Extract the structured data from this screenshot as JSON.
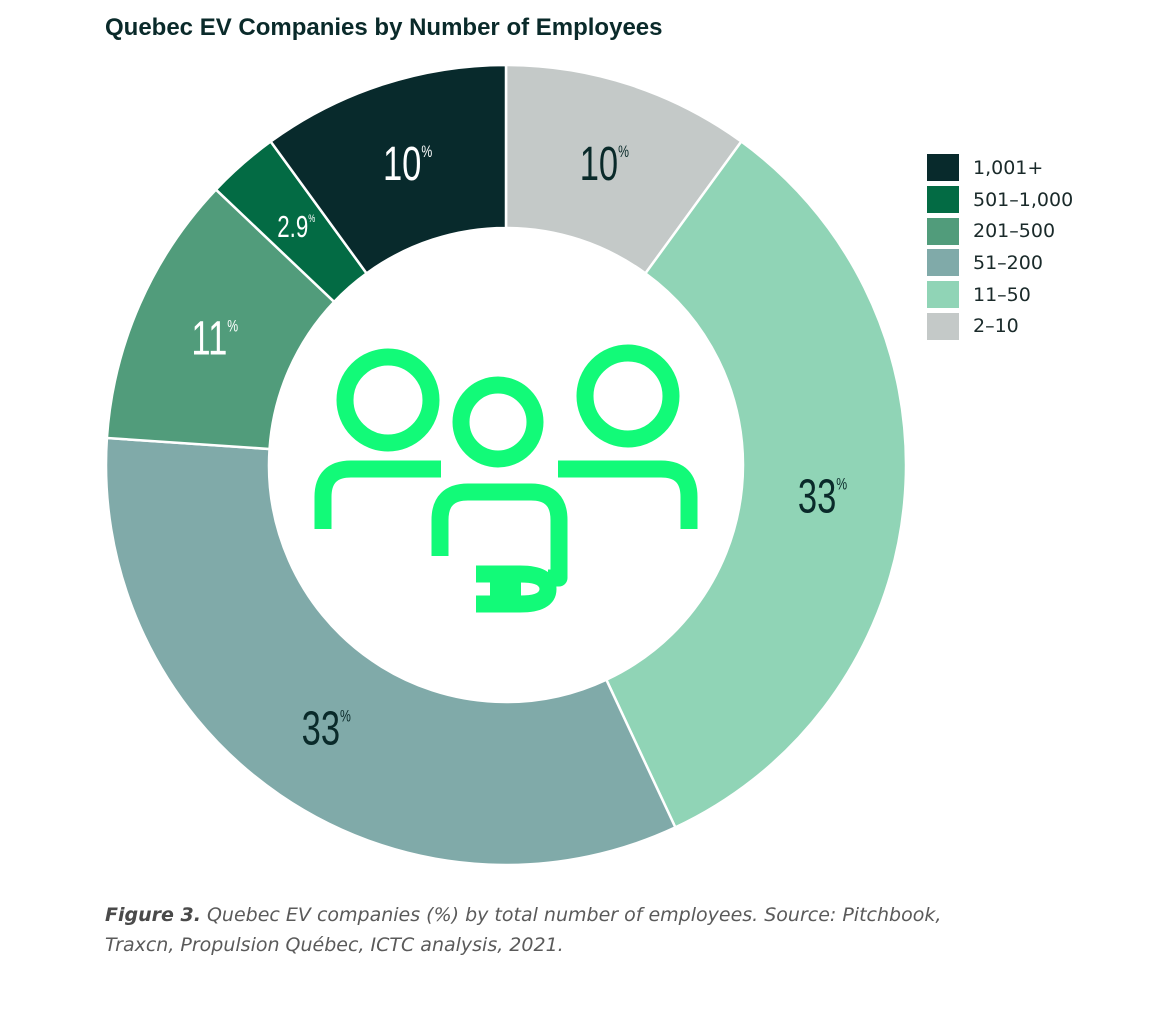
{
  "chart_data": {
    "type": "pie",
    "title": "Quebec EV Companies by Number of Employees",
    "categories": [
      "2–10",
      "11–50",
      "51–200",
      "201–500",
      "501–1,000",
      "1,001+"
    ],
    "values": [
      10,
      33,
      33,
      11,
      2.9,
      10
    ],
    "labels": [
      "10",
      "33",
      "33",
      "11",
      "2.9",
      "10"
    ],
    "unit_symbol": "%",
    "colors": [
      "#c4c9c8",
      "#90d4b6",
      "#80aaa9",
      "#519c7b",
      "#036b44",
      "#082a2c"
    ],
    "legend_order": [
      "1,001+",
      "501–1,000",
      "201–500",
      "51–200",
      "11–50",
      "2–10"
    ],
    "legend_colors": [
      "#082a2c",
      "#036b44",
      "#519c7b",
      "#80aaa9",
      "#90d4b6",
      "#c4c9c8"
    ],
    "legend_position": "right",
    "center_icon": "people-with-plug-icon",
    "icon_color": "#12fa78"
  },
  "caption": {
    "figure_label": "Figure 3.",
    "text": " Quebec EV companies (%) by total number of employees. Source: Pitchbook, Traxcn, Propulsion Québec, ICTC analysis, 2021."
  }
}
